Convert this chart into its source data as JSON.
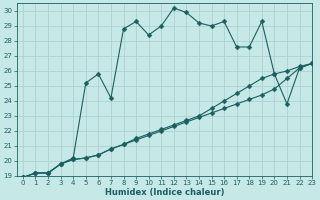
{
  "title": "",
  "xlabel": "Humidex (Indice chaleur)",
  "xlim": [
    -0.5,
    23
  ],
  "ylim": [
    19,
    30.5
  ],
  "xticks": [
    0,
    1,
    2,
    3,
    4,
    5,
    6,
    7,
    8,
    9,
    10,
    11,
    12,
    13,
    14,
    15,
    16,
    17,
    18,
    19,
    20,
    21,
    22,
    23
  ],
  "yticks": [
    19,
    20,
    21,
    22,
    23,
    24,
    25,
    26,
    27,
    28,
    29,
    30
  ],
  "background_color": "#c6e8e6",
  "grid_color": "#a8cece",
  "line_color": "#1a6060",
  "series": [
    {
      "x": [
        0,
        1,
        2,
        3,
        4,
        5,
        6,
        7,
        8,
        9,
        10,
        11,
        12,
        13,
        14,
        15,
        16,
        17,
        18,
        19,
        20,
        21,
        22,
        23
      ],
      "y": [
        18.9,
        19.2,
        19.2,
        19.8,
        20.2,
        25.2,
        25.8,
        24.2,
        28.8,
        29.3,
        28.4,
        29.0,
        30.2,
        29.9,
        29.2,
        29.0,
        29.3,
        27.6,
        27.6,
        29.3,
        25.8,
        23.8,
        26.2,
        26.5
      ]
    },
    {
      "x": [
        0,
        1,
        2,
        3,
        4,
        5,
        6,
        7,
        8,
        9,
        10,
        11,
        12,
        13,
        14,
        15,
        16,
        17,
        18,
        19,
        20,
        21,
        22,
        23
      ],
      "y": [
        18.9,
        19.2,
        19.2,
        19.8,
        20.1,
        20.2,
        20.4,
        20.8,
        21.1,
        21.5,
        21.8,
        22.1,
        22.4,
        22.7,
        23.0,
        23.5,
        24.0,
        24.5,
        25.0,
        25.5,
        25.8,
        26.0,
        26.3,
        26.5
      ]
    },
    {
      "x": [
        0,
        1,
        2,
        3,
        4,
        5,
        6,
        7,
        8,
        9,
        10,
        11,
        12,
        13,
        14,
        15,
        16,
        17,
        18,
        19,
        20,
        21,
        22,
        23
      ],
      "y": [
        18.9,
        19.2,
        19.2,
        19.8,
        20.1,
        20.2,
        20.4,
        20.8,
        21.1,
        21.4,
        21.7,
        22.0,
        22.3,
        22.6,
        22.9,
        23.2,
        23.5,
        23.8,
        24.1,
        24.4,
        24.8,
        25.5,
        26.2,
        26.5
      ]
    }
  ],
  "markersize": 2.5,
  "linewidth": 0.8,
  "tick_fontsize": 5,
  "xlabel_fontsize": 6
}
